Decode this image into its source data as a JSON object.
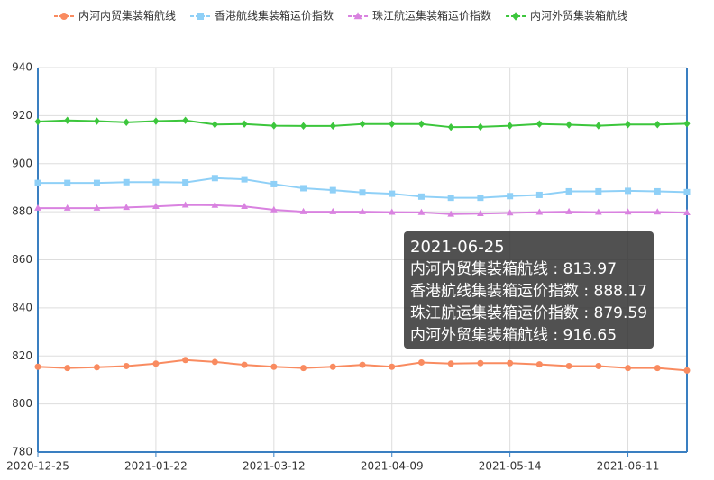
{
  "chart_data": {
    "type": "line",
    "categories": [
      "2020-12-25",
      null,
      null,
      null,
      "2021-01-22",
      null,
      null,
      null,
      "2021-03-12",
      null,
      null,
      null,
      "2021-04-09",
      null,
      null,
      null,
      "2021-05-14",
      null,
      null,
      null,
      "2021-06-11",
      null,
      "2021-06-25"
    ],
    "series": [
      {
        "name": "内河内贸集装箱航线",
        "color": "#f98b60",
        "marker": "circle",
        "values": [
          815.5,
          815,
          815.3,
          815.8,
          816.8,
          818.3,
          817.5,
          816.3,
          815.5,
          815,
          815.5,
          816.3,
          815.5,
          817.3,
          816.8,
          817,
          817,
          816.5,
          815.8,
          815.8,
          815,
          815,
          813.97
        ]
      },
      {
        "name": "香港航线集装箱运价指数",
        "color": "#8fd0f7",
        "marker": "square",
        "values": [
          892,
          892,
          892,
          892.3,
          892.3,
          892.2,
          894,
          893.5,
          891.5,
          889.8,
          889,
          888,
          887.5,
          886.3,
          885.8,
          885.8,
          886.5,
          887,
          888.5,
          888.5,
          888.7,
          888.5,
          888.17
        ]
      },
      {
        "name": "珠江航运集装箱运价指数",
        "color": "#d982e0",
        "marker": "triangle",
        "values": [
          881.5,
          881.5,
          881.5,
          881.8,
          882.2,
          882.8,
          882.7,
          882.2,
          880.8,
          880,
          880,
          880,
          879.8,
          879.7,
          879,
          879.2,
          879.5,
          879.8,
          880,
          879.8,
          879.9,
          879.9,
          879.59
        ]
      },
      {
        "name": "内河外贸集装箱航线",
        "color": "#3cc63c",
        "marker": "diamond",
        "values": [
          917.5,
          918,
          917.7,
          917.2,
          917.7,
          918,
          916.3,
          916.5,
          915.8,
          915.7,
          915.7,
          916.5,
          916.5,
          916.5,
          915.2,
          915.3,
          915.8,
          916.5,
          916.2,
          915.8,
          916.3,
          916.3,
          916.65
        ]
      }
    ],
    "ylim": [
      780,
      940
    ],
    "yticks": [
      780,
      800,
      820,
      840,
      860,
      880,
      900,
      920,
      940
    ],
    "grid": true,
    "legend": "top",
    "tooltip_index": 22,
    "tooltip_separator": " : "
  }
}
